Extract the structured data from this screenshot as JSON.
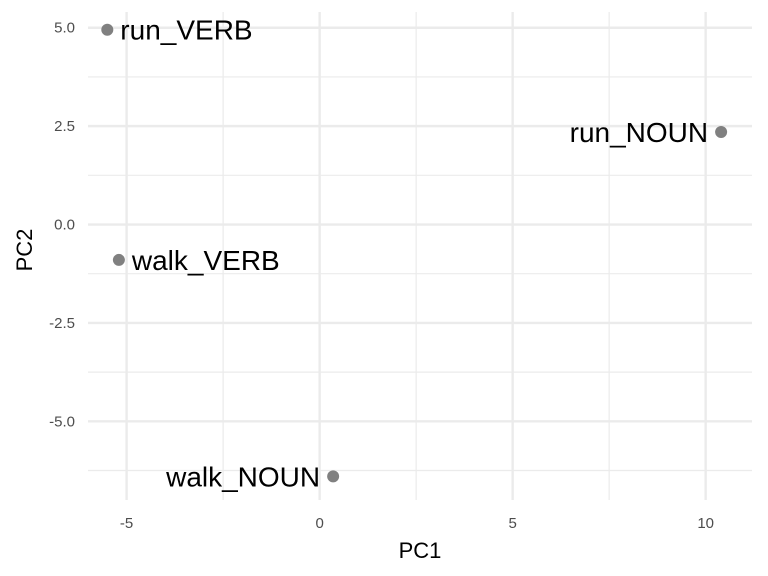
{
  "chart_data": {
    "type": "scatter",
    "title": "",
    "xlabel": "PC1",
    "ylabel": "PC2",
    "xlim": [
      -6.0,
      11.2
    ],
    "ylim": [
      -7.0,
      5.4
    ],
    "x_ticks": [
      -5,
      0,
      5,
      10
    ],
    "x_tick_labels": [
      "-5",
      "0",
      "5",
      "10"
    ],
    "y_ticks": [
      5.0,
      2.5,
      0.0,
      -2.5,
      -5.0
    ],
    "y_tick_labels": [
      "5.0",
      "2.5",
      "0.0",
      "-2.5",
      "-5.0"
    ],
    "grid": true,
    "point_color": "#808080",
    "grid_color": "#ebebeb",
    "points": [
      {
        "label": "run_VERB",
        "x": -5.5,
        "y": 4.95
      },
      {
        "label": "run_NOUN",
        "x": 10.4,
        "y": 2.35
      },
      {
        "label": "walk_VERB",
        "x": -5.2,
        "y": -0.9
      },
      {
        "label": "walk_NOUN",
        "x": 0.35,
        "y": -6.4
      }
    ]
  }
}
